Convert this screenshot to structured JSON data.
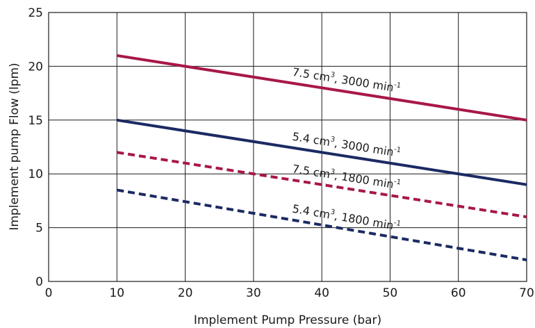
{
  "chart_data": {
    "type": "line",
    "xlabel": "Implement Pump Pressure (bar)",
    "ylabel": "Implement pump Flow (lpm)",
    "xlim": [
      0,
      70
    ],
    "ylim": [
      0,
      25
    ],
    "xticks": [
      0,
      10,
      20,
      30,
      40,
      50,
      60,
      70
    ],
    "yticks": [
      0,
      5,
      10,
      15,
      20,
      25
    ],
    "grid": true,
    "series": [
      {
        "label_main": "7.5 cm",
        "label_sup1": "3",
        "label_mid": ", 3000 min",
        "label_sup2": "-1",
        "color": "#a8174a",
        "dash": "solid",
        "x": [
          10,
          70
        ],
        "y": [
          21.0,
          15.0
        ]
      },
      {
        "label_main": "5.4 cm",
        "label_sup1": "3",
        "label_mid": ", 3000 min",
        "label_sup2": "-1",
        "color": "#1b2a63",
        "dash": "solid",
        "x": [
          10,
          70
        ],
        "y": [
          15.0,
          9.0
        ]
      },
      {
        "label_main": "7.5 cm",
        "label_sup1": "3",
        "label_mid": ", 1800 min",
        "label_sup2": "-1",
        "color": "#a8174a",
        "dash": "dashed",
        "x": [
          10,
          70
        ],
        "y": [
          12.0,
          6.0
        ]
      },
      {
        "label_main": "5.4 cm",
        "label_sup1": "3",
        "label_mid": ", 1800 min",
        "label_sup2": "-1",
        "color": "#1b2a63",
        "dash": "dashed",
        "x": [
          10,
          70
        ],
        "y": [
          8.5,
          2.0
        ]
      }
    ],
    "label_anchor_x": 35
  }
}
